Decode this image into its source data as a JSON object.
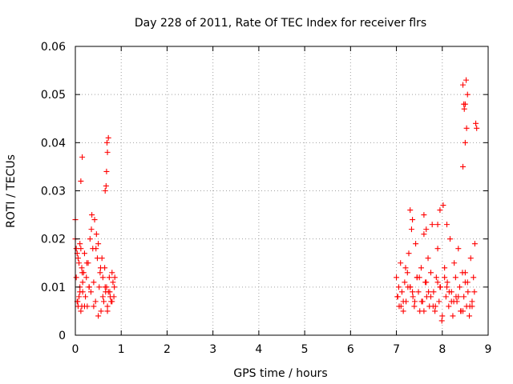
{
  "chart_data": {
    "type": "scatter",
    "title": "Day 228 of 2011, Rate Of TEC Index for receiver flrs",
    "xlabel": "GPS time / hours",
    "ylabel": "ROTI / TECUs",
    "xlim": [
      0,
      9
    ],
    "ylim": [
      0,
      0.06
    ],
    "xticks": [
      "0",
      "1",
      "2",
      "3",
      "4",
      "5",
      "6",
      "7",
      "8",
      "9"
    ],
    "yticks": [
      "0",
      "0.01",
      "0.02",
      "0.03",
      "0.04",
      "0.05",
      "0.06"
    ],
    "grid": true,
    "marker": "+",
    "series": [
      {
        "name": "ROTI",
        "color": "#ff0000",
        "x": [
          0.0,
          0.02,
          0.02,
          0.04,
          0.04,
          0.06,
          0.06,
          0.08,
          0.08,
          0.1,
          0.1,
          0.12,
          0.12,
          0.14,
          0.14,
          0.16,
          0.16,
          0.18,
          0.2,
          0.22,
          0.24,
          0.26,
          0.28,
          0.3,
          0.32,
          0.34,
          0.36,
          0.38,
          0.4,
          0.42,
          0.44,
          0.46,
          0.48,
          0.5,
          0.52,
          0.54,
          0.56,
          0.58,
          0.6,
          0.62,
          0.64,
          0.66,
          0.68,
          0.7,
          0.72,
          0.74,
          0.76,
          0.78,
          0.8,
          0.82,
          0.84,
          0.86,
          0.0,
          0.05,
          0.1,
          0.15,
          0.2,
          0.25,
          0.3,
          0.35,
          0.4,
          0.45,
          0.5,
          0.55,
          0.6,
          0.65,
          0.7,
          0.75,
          0.8,
          0.85,
          0.12,
          0.15,
          0.65,
          0.68,
          0.7,
          0.72,
          0.67,
          0.69,
          7.0,
          7.03,
          7.06,
          7.09,
          7.12,
          7.15,
          7.18,
          7.21,
          7.24,
          7.27,
          7.3,
          7.33,
          7.36,
          7.39,
          7.42,
          7.45,
          7.48,
          7.51,
          7.54,
          7.57,
          7.6,
          7.63,
          7.66,
          7.69,
          7.72,
          7.75,
          7.78,
          7.81,
          7.84,
          7.87,
          7.9,
          7.93,
          7.96,
          7.99,
          8.02,
          8.05,
          8.08,
          8.11,
          8.14,
          8.17,
          8.2,
          8.23,
          8.26,
          8.29,
          8.32,
          8.35,
          8.38,
          8.41,
          8.44,
          8.47,
          8.5,
          8.53,
          8.56,
          8.59,
          8.62,
          8.65,
          8.68,
          8.71,
          7.02,
          7.1,
          7.2,
          7.3,
          7.4,
          7.5,
          7.6,
          7.7,
          7.8,
          7.9,
          8.0,
          8.1,
          8.2,
          8.3,
          8.4,
          8.5,
          8.6,
          8.7,
          7.05,
          7.15,
          7.25,
          7.35,
          7.45,
          7.55,
          7.65,
          7.75,
          7.85,
          7.95,
          8.05,
          8.15,
          8.25,
          8.35,
          8.45,
          8.55,
          8.65,
          7.3,
          7.35,
          7.6,
          7.65,
          7.9,
          7.95,
          8.1,
          8.45,
          8.5,
          8.55,
          8.48,
          8.52,
          8.5,
          8.53,
          8.45,
          8.47,
          8.75,
          8.73
        ],
        "y": [
          0.02,
          0.018,
          0.012,
          0.017,
          0.007,
          0.016,
          0.006,
          0.015,
          0.008,
          0.019,
          0.01,
          0.018,
          0.005,
          0.014,
          0.006,
          0.011,
          0.009,
          0.013,
          0.017,
          0.008,
          0.012,
          0.006,
          0.015,
          0.01,
          0.02,
          0.009,
          0.025,
          0.018,
          0.011,
          0.024,
          0.007,
          0.021,
          0.016,
          0.019,
          0.01,
          0.013,
          0.005,
          0.016,
          0.012,
          0.007,
          0.014,
          0.009,
          0.01,
          0.006,
          0.009,
          0.012,
          0.008,
          0.007,
          0.013,
          0.011,
          0.008,
          0.012,
          0.024,
          0.007,
          0.009,
          0.013,
          0.006,
          0.015,
          0.01,
          0.022,
          0.006,
          0.018,
          0.004,
          0.014,
          0.008,
          0.01,
          0.005,
          0.009,
          0.007,
          0.01,
          0.032,
          0.037,
          0.03,
          0.034,
          0.038,
          0.041,
          0.031,
          0.04,
          0.012,
          0.008,
          0.006,
          0.015,
          0.009,
          0.005,
          0.011,
          0.007,
          0.013,
          0.017,
          0.01,
          0.022,
          0.008,
          0.006,
          0.019,
          0.012,
          0.009,
          0.005,
          0.014,
          0.007,
          0.021,
          0.011,
          0.008,
          0.016,
          0.006,
          0.013,
          0.023,
          0.009,
          0.005,
          0.012,
          0.018,
          0.007,
          0.01,
          0.003,
          0.027,
          0.014,
          0.008,
          0.011,
          0.006,
          0.02,
          0.009,
          0.004,
          0.015,
          0.012,
          0.007,
          0.018,
          0.01,
          0.005,
          0.013,
          0.008,
          0.011,
          0.006,
          0.009,
          0.004,
          0.016,
          0.007,
          0.012,
          0.019,
          0.008,
          0.006,
          0.014,
          0.01,
          0.007,
          0.012,
          0.005,
          0.009,
          0.006,
          0.011,
          0.004,
          0.01,
          0.007,
          0.008,
          0.005,
          0.013,
          0.006,
          0.009,
          0.01,
          0.007,
          0.01,
          0.009,
          0.012,
          0.007,
          0.011,
          0.008,
          0.006,
          0.01,
          0.012,
          0.009,
          0.007,
          0.008,
          0.005,
          0.011,
          0.006,
          0.026,
          0.024,
          0.025,
          0.022,
          0.023,
          0.026,
          0.023,
          0.052,
          0.048,
          0.05,
          0.047,
          0.053,
          0.04,
          0.043,
          0.035,
          0.048,
          0.043,
          0.044
        ]
      }
    ]
  }
}
